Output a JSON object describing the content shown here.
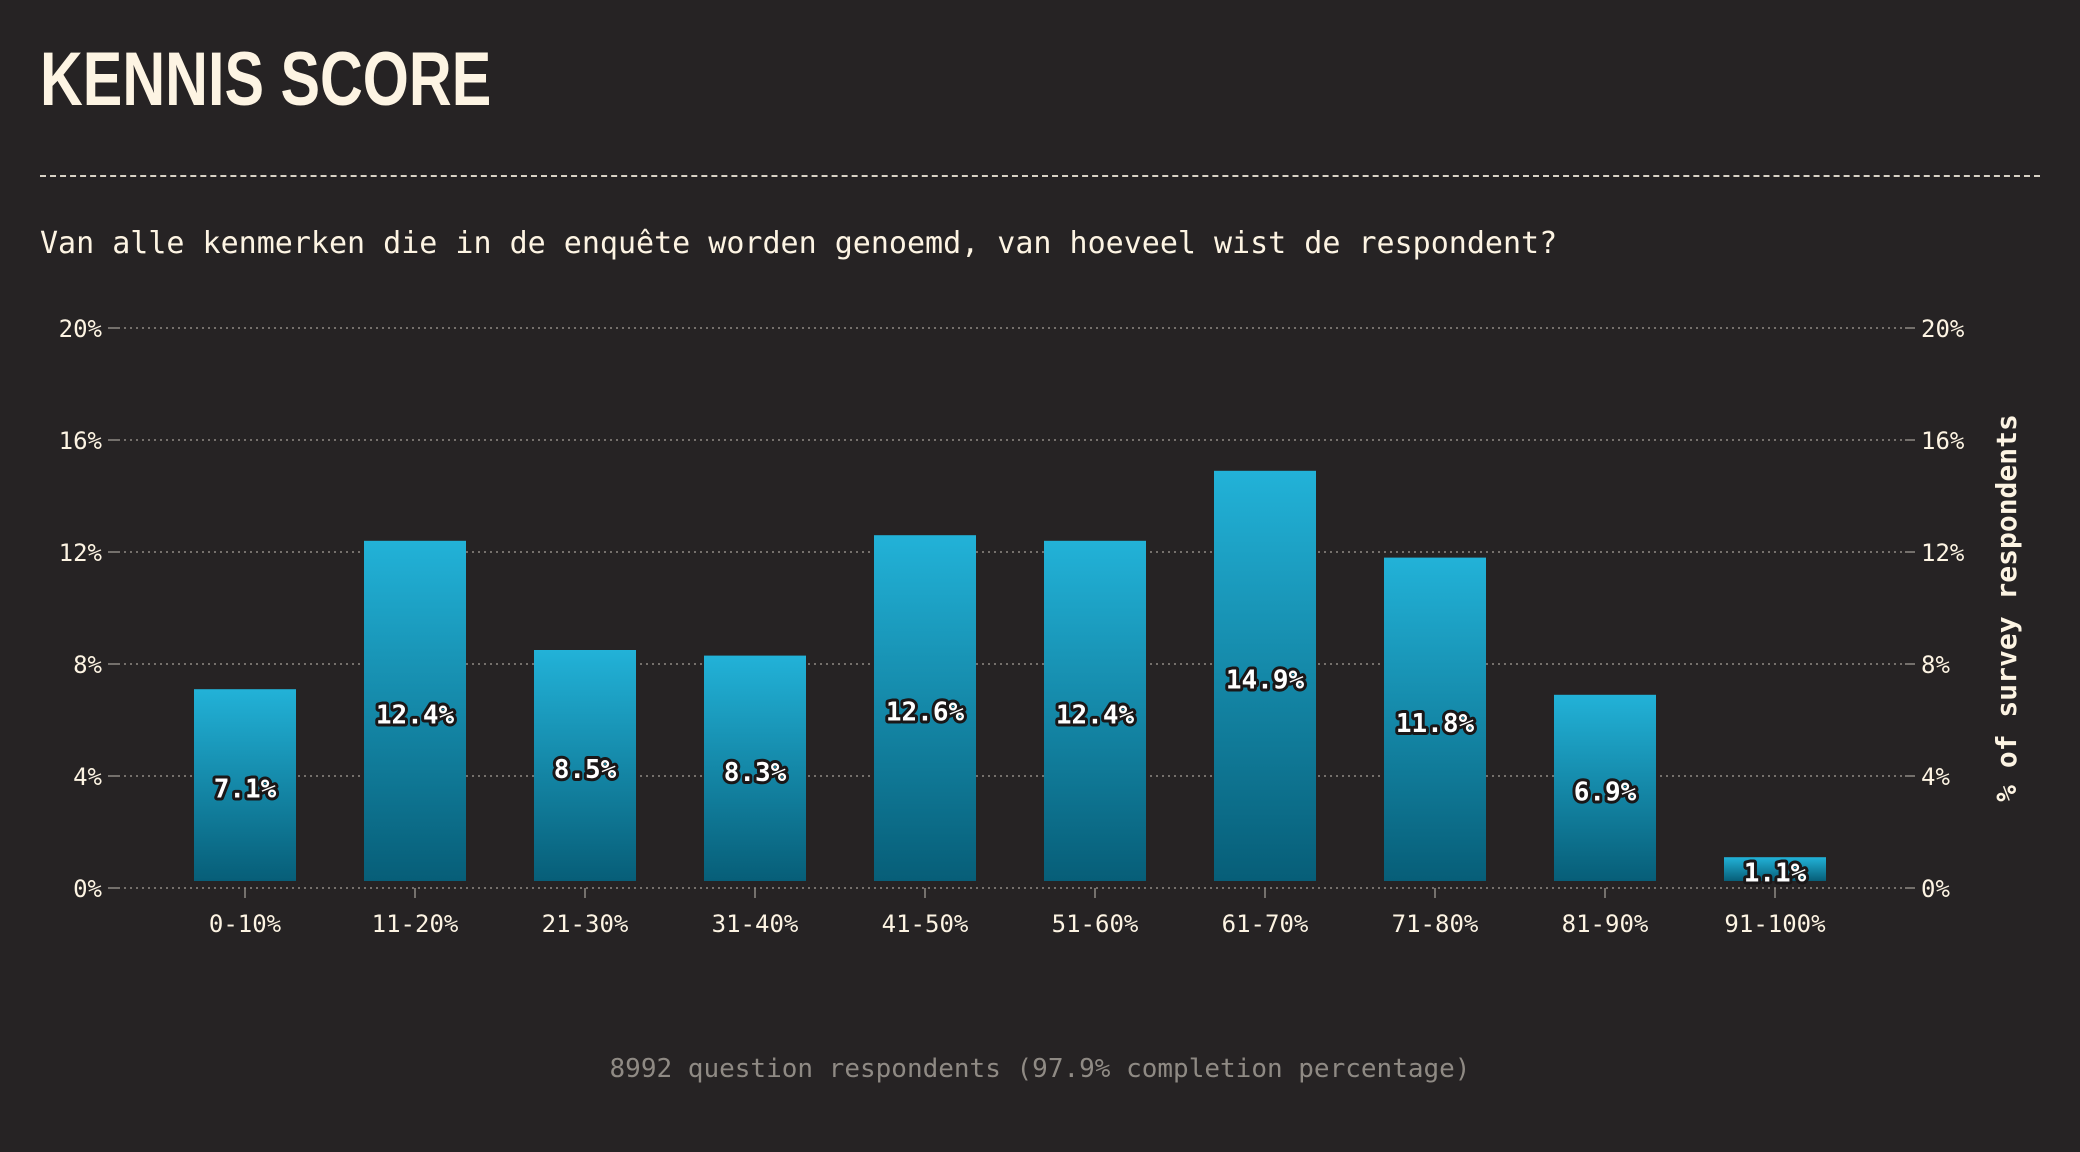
{
  "header": {
    "title": "KENNIS SCORE",
    "subtitle": "Van alle kenmerken die in de enquête worden genoemd, van hoeveel wist de respondent?"
  },
  "footer": {
    "note": "8992 question respondents (97.9% completion percentage)"
  },
  "colors": {
    "background": "#262324",
    "bar_top": "#22b2d8",
    "bar_bottom": "#075e78",
    "text": "#fdf4e3",
    "grid": "#8f8a84"
  },
  "chart_data": {
    "type": "bar",
    "categories": [
      "0-10%",
      "11-20%",
      "21-30%",
      "31-40%",
      "41-50%",
      "51-60%",
      "61-70%",
      "71-80%",
      "81-90%",
      "91-100%"
    ],
    "values": [
      7.1,
      12.4,
      8.5,
      8.3,
      12.6,
      12.4,
      14.9,
      11.8,
      6.9,
      1.1
    ],
    "value_labels": [
      "7.1%",
      "12.4%",
      "8.5%",
      "8.3%",
      "12.6%",
      "12.4%",
      "14.9%",
      "11.8%",
      "6.9%",
      "1.1%"
    ],
    "yticks": [
      0,
      4,
      8,
      12,
      16,
      20
    ],
    "ytick_labels": [
      "0%",
      "4%",
      "8%",
      "12%",
      "16%",
      "20%"
    ],
    "ylim": [
      0,
      20
    ],
    "xlabel": "",
    "ylabel": "",
    "y2label": "% of survey respondents",
    "grid": true,
    "legend": "none"
  }
}
